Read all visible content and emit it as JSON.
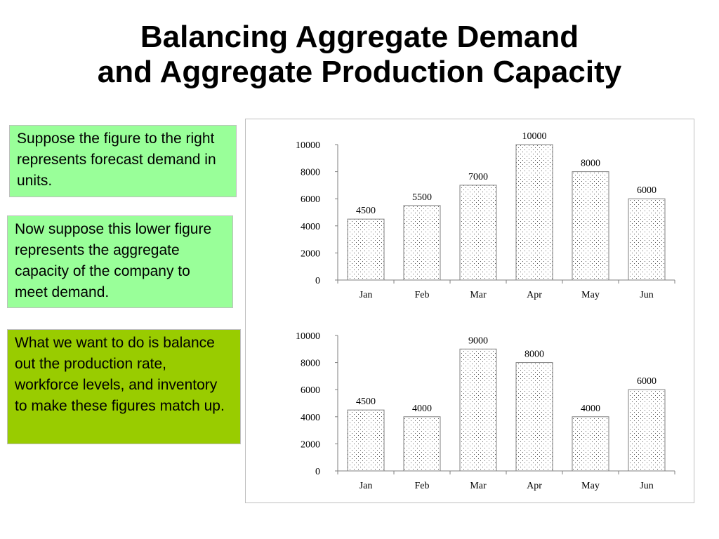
{
  "slide": {
    "title_line1": "Balancing Aggregate Demand",
    "title_line2": "and Aggregate Production Capacity"
  },
  "notes": [
    "Suppose the figure to the right represents forecast demand in units.",
    "Now suppose this lower figure represents the aggregate capacity of the company to meet demand.",
    "What we want to do is balance out the production rate, workforce levels, and inventory to make these figures match up."
  ],
  "colors": {
    "note_light_green": "#99ff99",
    "note_olive_green": "#99cc00",
    "bar_outline": "#7f7f7f"
  },
  "chart_data": [
    {
      "type": "bar",
      "categories": [
        "Jan",
        "Feb",
        "Mar",
        "Apr",
        "May",
        "Jun"
      ],
      "values": [
        4500,
        5500,
        7000,
        10000,
        8000,
        6000
      ],
      "data_labels": [
        "4500",
        "5500",
        "7000",
        "10000",
        "8000",
        "6000"
      ],
      "yticks": [
        "0",
        "2000",
        "4000",
        "6000",
        "8000",
        "10000"
      ],
      "ylim": [
        0,
        10000
      ],
      "fill_pattern": "dotted"
    },
    {
      "type": "bar",
      "categories": [
        "Jan",
        "Feb",
        "Mar",
        "Apr",
        "May",
        "Jun"
      ],
      "values": [
        4500,
        4000,
        9000,
        8000,
        4000,
        6000
      ],
      "data_labels": [
        "4500",
        "4000",
        "9000",
        "8000",
        "4000",
        "6000"
      ],
      "yticks": [
        "0",
        "2000",
        "4000",
        "6000",
        "8000",
        "10000"
      ],
      "ylim": [
        0,
        10000
      ],
      "fill_pattern": "dotted"
    }
  ]
}
